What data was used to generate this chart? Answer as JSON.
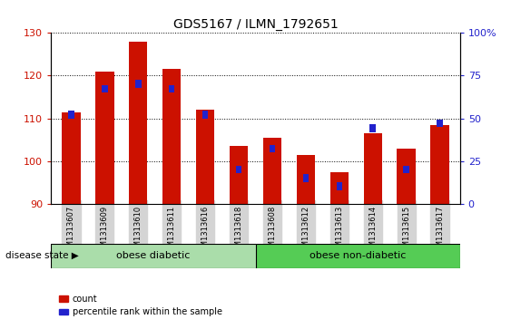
{
  "title": "GDS5167 / ILMN_1792651",
  "samples": [
    "GSM1313607",
    "GSM1313609",
    "GSM1313610",
    "GSM1313611",
    "GSM1313616",
    "GSM1313618",
    "GSM1313608",
    "GSM1313612",
    "GSM1313613",
    "GSM1313614",
    "GSM1313615",
    "GSM1313617"
  ],
  "count_values": [
    111.5,
    121.0,
    128.0,
    121.5,
    112.0,
    103.5,
    105.5,
    101.5,
    97.5,
    106.5,
    103.0,
    108.5
  ],
  "percentile_values": [
    50,
    65,
    68,
    65,
    50,
    18,
    30,
    13,
    8,
    42,
    18,
    45
  ],
  "ylim_left": [
    90,
    130
  ],
  "ylim_right": [
    0,
    100
  ],
  "yticks_left": [
    90,
    100,
    110,
    120,
    130
  ],
  "yticks_right": [
    0,
    25,
    50,
    75,
    100
  ],
  "bar_color": "#cc1100",
  "percentile_color": "#2222cc",
  "tick_bg": "#d4d4d4",
  "group1_label": "obese diabetic",
  "group2_label": "obese non-diabetic",
  "group1_color": "#aaddaa",
  "group2_color": "#55cc55",
  "disease_state_label": "disease state",
  "legend_count": "count",
  "legend_percentile": "percentile rank within the sample"
}
